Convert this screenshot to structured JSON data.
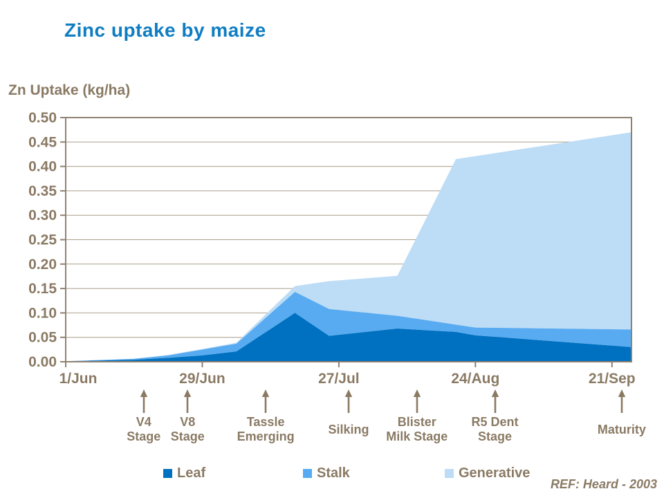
{
  "header": {
    "title": "Zinc uptake by maize"
  },
  "colors": {
    "title_blue": "#0f7dc2",
    "text_brown": "#8a7a64",
    "gridline": "#a89d8b",
    "axis_frame": "#8e8170",
    "leaf": "#0070c0",
    "stalk": "#58abf0",
    "generative": "#bddcf6"
  },
  "chart_data": {
    "type": "area",
    "stacked": true,
    "title": "Zinc uptake by maize",
    "ylabel": "Zn Uptake (kg/ha)",
    "ylim": [
      0,
      0.5
    ],
    "y_tick_step": 0.05,
    "y_tick_labels": [
      "0.00",
      "0.05",
      "0.10",
      "0.15",
      "0.20",
      "0.25",
      "0.30",
      "0.35",
      "0.40",
      "0.45",
      "0.50"
    ],
    "grid": "horizontal",
    "legend_position": "bottom",
    "x_unit": "days after 1/Jun",
    "x_axis_span_days": [
      0,
      116
    ],
    "x_ticks": [
      {
        "day": 0,
        "label": "1/Jun"
      },
      {
        "day": 28,
        "label": "29/Jun"
      },
      {
        "day": 56,
        "label": "27/Jul"
      },
      {
        "day": 84,
        "label": "24/Aug"
      },
      {
        "day": 112,
        "label": "21/Sep"
      }
    ],
    "x_days": [
      0,
      14,
      21,
      28,
      35,
      47,
      54,
      68,
      80,
      84,
      116
    ],
    "series": [
      {
        "name": "Leaf",
        "color": "#0070c0",
        "values": [
          0.001,
          0.004,
          0.008,
          0.013,
          0.021,
          0.1,
          0.053,
          0.068,
          0.061,
          0.054,
          0.03
        ]
      },
      {
        "name": "Stalk",
        "color": "#58abf0",
        "values": [
          0.0,
          0.002,
          0.005,
          0.012,
          0.016,
          0.043,
          0.055,
          0.026,
          0.015,
          0.016,
          0.036
        ]
      },
      {
        "name": "Generative",
        "color": "#bddcf6",
        "values": [
          0.0,
          0.0,
          0.001,
          0.001,
          0.002,
          0.012,
          0.057,
          0.082,
          0.339,
          0.351,
          0.404
        ]
      }
    ]
  },
  "stages": [
    {
      "label_lines": [
        "V4",
        "Stage"
      ],
      "day": 16
    },
    {
      "label_lines": [
        "V8",
        "Stage"
      ],
      "day": 25
    },
    {
      "label_lines": [
        "Tassle",
        "Emerging"
      ],
      "day": 41
    },
    {
      "label_lines": [
        "Silking"
      ],
      "day": 58
    },
    {
      "label_lines": [
        "Blister",
        "Milk Stage"
      ],
      "day": 72
    },
    {
      "label_lines": [
        "R5 Dent",
        "Stage"
      ],
      "day": 88
    },
    {
      "label_lines": [
        "Maturity"
      ],
      "day": 114
    }
  ],
  "footer": {
    "ref_note": "REF: Heard - 2003"
  }
}
